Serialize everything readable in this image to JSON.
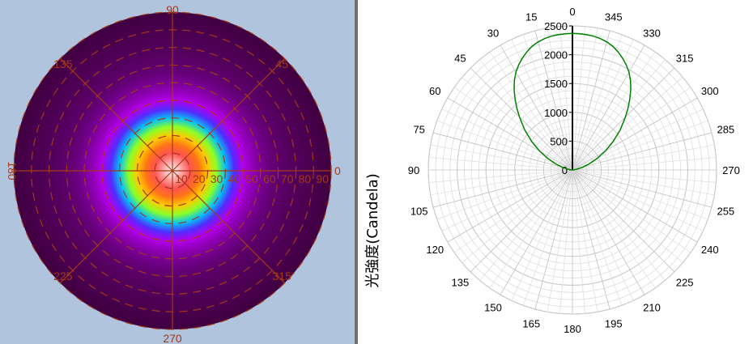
{
  "chart_data": [
    {
      "type": "heatmap",
      "subtype": "polar-intensity-map",
      "colors": {
        "background": "#b0c4de",
        "grid": "#a23a1a",
        "colormap": [
          "#ffffff",
          "#ff4040",
          "#ff9000",
          "#ffff00",
          "#40ff40",
          "#00c0ff",
          "#2040ff",
          "#c000ff",
          "#8000a0",
          "#400040"
        ]
      },
      "angle_labels": [
        "0",
        "45",
        "90",
        "135",
        "180",
        "225",
        "270",
        "315"
      ],
      "radial_labels": [
        "10",
        "20",
        "30",
        "40",
        "50",
        "60",
        "70",
        "80",
        "90"
      ],
      "rmax": 90,
      "normalized_intensity": {
        "r": [
          0,
          5,
          10,
          15,
          20,
          25,
          30,
          35,
          40,
          45,
          50,
          55,
          60,
          70,
          80,
          90
        ],
        "value": [
          1.0,
          0.95,
          0.9,
          0.82,
          0.72,
          0.6,
          0.45,
          0.3,
          0.2,
          0.14,
          0.1,
          0.07,
          0.05,
          0.03,
          0.015,
          0.0
        ]
      }
    },
    {
      "type": "line",
      "subtype": "polar",
      "ylabel": "光強度(Candela)",
      "angle_labels": [
        "0",
        "15",
        "30",
        "45",
        "60",
        "75",
        "90",
        "105",
        "120",
        "135",
        "150",
        "165",
        "180",
        "195",
        "210",
        "225",
        "240",
        "255",
        "270",
        "285",
        "300",
        "315",
        "330",
        "345"
      ],
      "radial_ticks": [
        "0",
        "500",
        "1000",
        "1500",
        "2000",
        "2500"
      ],
      "rlim": [
        0,
        2500
      ],
      "series_color": "#008000",
      "series": [
        {
          "angle": [
            0,
            3,
            6,
            9,
            12,
            15,
            18,
            21,
            24,
            27,
            30,
            33,
            36,
            39,
            42,
            45,
            50,
            55,
            60,
            65,
            70,
            75,
            80,
            85,
            88,
            90,
            270,
            272,
            275,
            280,
            285,
            290,
            295,
            300,
            305,
            310,
            315,
            318,
            321,
            324,
            327,
            330,
            333,
            336,
            339,
            342,
            345,
            348,
            351,
            354,
            357,
            360
          ],
          "value": [
            2370,
            2365,
            2360,
            2350,
            2330,
            2300,
            2260,
            2200,
            2130,
            2050,
            1960,
            1850,
            1720,
            1580,
            1440,
            1300,
            1080,
            860,
            660,
            470,
            310,
            180,
            80,
            25,
            5,
            0,
            0,
            5,
            25,
            80,
            180,
            310,
            470,
            660,
            860,
            1080,
            1300,
            1440,
            1580,
            1720,
            1850,
            1960,
            2050,
            2130,
            2200,
            2260,
            2300,
            2330,
            2350,
            2360,
            2365,
            2370
          ]
        }
      ]
    }
  ]
}
